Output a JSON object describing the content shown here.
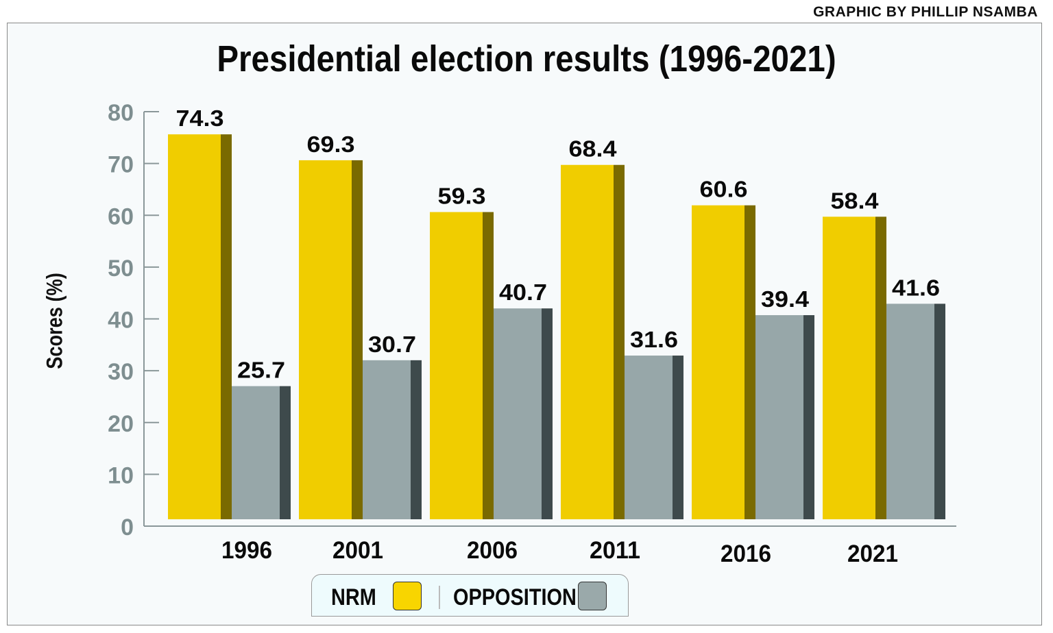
{
  "credit": "GRAPHIC BY PHILLIP NSAMBA",
  "chart_data": {
    "type": "bar",
    "title": "Presidential election results (1996-2021)",
    "xlabel": "",
    "ylabel": "Scores (%)",
    "ylim": [
      0,
      80
    ],
    "yticks": [
      "0",
      "10",
      "20",
      "30",
      "40",
      "50",
      "60",
      "70",
      "80"
    ],
    "categories": [
      "1996",
      "2001",
      "2006",
      "2011",
      "2016",
      "2021"
    ],
    "series": [
      {
        "name": "NRM",
        "color": "#f0cd00",
        "side": "#7a6a00",
        "values": [
          74.3,
          69.3,
          59.3,
          68.4,
          60.6,
          58.4
        ]
      },
      {
        "name": "OPPOSITION",
        "color": "#97a7a9",
        "side": "#3e4a4c",
        "values": [
          25.7,
          30.7,
          40.7,
          31.6,
          39.4,
          41.6
        ]
      }
    ],
    "legend_position": "bottom-center",
    "grid": false
  }
}
